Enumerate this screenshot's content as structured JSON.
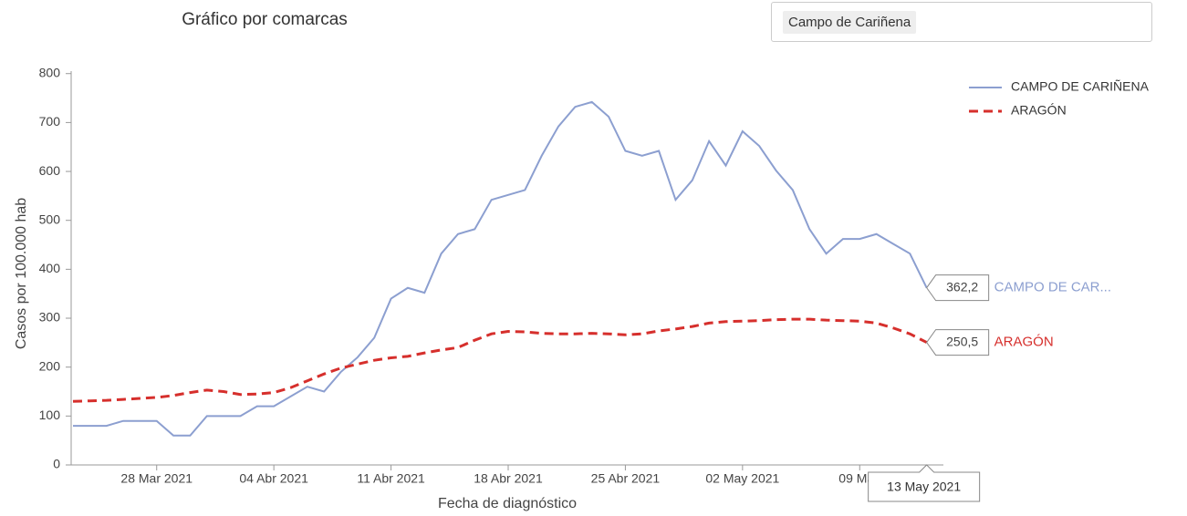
{
  "chart_data": {
    "type": "line",
    "title": "Gráfico por comarcas",
    "selector": "Campo de Cariñena",
    "x_label": "Fecha de diagnóstico",
    "y_label": "Casos por 100.000 hab",
    "x": [
      "2021-03-23",
      "2021-03-24",
      "2021-03-25",
      "2021-03-26",
      "2021-03-27",
      "2021-03-28",
      "2021-03-29",
      "2021-03-30",
      "2021-03-31",
      "2021-04-01",
      "2021-04-02",
      "2021-04-03",
      "2021-04-04",
      "2021-04-05",
      "2021-04-06",
      "2021-04-07",
      "2021-04-08",
      "2021-04-09",
      "2021-04-10",
      "2021-04-11",
      "2021-04-12",
      "2021-04-13",
      "2021-04-14",
      "2021-04-15",
      "2021-04-16",
      "2021-04-17",
      "2021-04-18",
      "2021-04-19",
      "2021-04-20",
      "2021-04-21",
      "2021-04-22",
      "2021-04-23",
      "2021-04-24",
      "2021-04-25",
      "2021-04-26",
      "2021-04-27",
      "2021-04-28",
      "2021-04-29",
      "2021-04-30",
      "2021-05-01",
      "2021-05-02",
      "2021-05-03",
      "2021-05-04",
      "2021-05-05",
      "2021-05-06",
      "2021-05-07",
      "2021-05-08",
      "2021-05-09",
      "2021-05-10",
      "2021-05-11",
      "2021-05-12",
      "2021-05-13"
    ],
    "series": [
      {
        "name": "CAMPO DE CARIÑENA",
        "color": "#8c9fd0",
        "dash": "solid",
        "values": [
          80,
          80,
          80,
          90,
          90,
          90,
          60,
          60,
          100,
          100,
          100,
          120,
          120,
          140,
          160,
          150,
          190,
          220,
          260,
          340,
          362,
          352,
          432,
          472,
          482,
          542,
          552,
          562,
          632,
          692,
          732,
          742,
          712,
          642,
          632,
          642,
          542,
          582,
          662,
          612,
          682,
          652,
          602,
          562,
          482,
          432,
          462,
          462,
          472,
          452,
          432,
          362.2
        ],
        "hover_label": "362,2",
        "hover_name": "CAMPO DE CAR..."
      },
      {
        "name": "ARAGÓN",
        "color": "#d62f2c",
        "dash": "dashed",
        "values": [
          130,
          131,
          132,
          134,
          136,
          138,
          142,
          148,
          153,
          150,
          144,
          145,
          148,
          158,
          172,
          186,
          198,
          206,
          214,
          219,
          222,
          229,
          235,
          240,
          255,
          268,
          273,
          272,
          269,
          268,
          268,
          269,
          268,
          266,
          268,
          274,
          278,
          283,
          290,
          293,
          294,
          295,
          297,
          298,
          298,
          296,
          295,
          294,
          290,
          280,
          268,
          250.5
        ],
        "hover_label": "250,5",
        "hover_name": "ARAGÓN"
      }
    ],
    "hover_x_label": "13 May 2021",
    "xlim": [
      "2021-03-23",
      "2021-05-14"
    ],
    "xticks": [
      {
        "value": "2021-03-28",
        "label": "28 Mar 2021"
      },
      {
        "value": "2021-04-04",
        "label": "04 Abr 2021"
      },
      {
        "value": "2021-04-11",
        "label": "11 Abr 2021"
      },
      {
        "value": "2021-04-18",
        "label": "18 Abr 2021"
      },
      {
        "value": "2021-04-25",
        "label": "25 Abr 2021"
      },
      {
        "value": "2021-05-02",
        "label": "02 May 2021"
      },
      {
        "value": "2021-05-09",
        "label": "09 May"
      }
    ],
    "ylim": [
      0,
      820
    ],
    "yticks": [
      0,
      100,
      200,
      300,
      400,
      500,
      600,
      700,
      800
    ],
    "grid": false,
    "legend": "top-right"
  }
}
